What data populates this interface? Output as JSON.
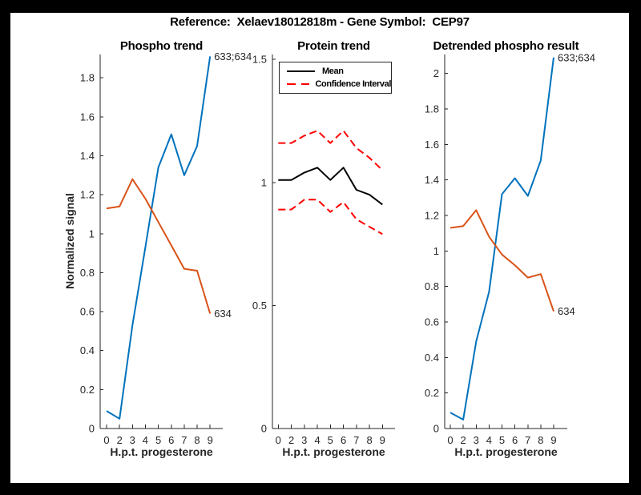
{
  "figure_title": "Reference:  Xelaev18012818m - Gene Symbol:  CEP97",
  "chart_data": [
    {
      "type": "line",
      "title": "Phospho trend",
      "xlabel": "H.p.t. progesterone",
      "ylabel": "Normalized signal",
      "categories": [
        "0",
        "2",
        "3",
        "4",
        "5",
        "6",
        "7",
        "8",
        "9"
      ],
      "ylim": [
        0,
        1.92
      ],
      "yticks": [
        0,
        0.2,
        0.4,
        0.6,
        0.8,
        1,
        1.2,
        1.4,
        1.6,
        1.8
      ],
      "grid": false,
      "series": [
        {
          "name": "633;634",
          "color": "#0072BD",
          "dash": "solid",
          "end_label": "633;634",
          "values": [
            0.09,
            0.05,
            0.53,
            0.93,
            1.34,
            1.51,
            1.3,
            1.45,
            1.91
          ]
        },
        {
          "name": "634",
          "color": "#D95319",
          "dash": "solid",
          "end_label": "634",
          "values": [
            1.13,
            1.14,
            1.28,
            1.18,
            1.06,
            0.94,
            0.82,
            0.81,
            0.59
          ]
        }
      ]
    },
    {
      "type": "line",
      "title": "Protein trend",
      "xlabel": "H.p.t. progesterone",
      "ylabel": "",
      "categories": [
        "0",
        "2",
        "3",
        "4",
        "5",
        "6",
        "7",
        "8",
        "9"
      ],
      "ylim": [
        0,
        1.52
      ],
      "yticks": [
        0,
        0.5,
        1,
        1.5
      ],
      "grid": false,
      "legend": {
        "position": "top-left",
        "items": [
          {
            "label": "Mean",
            "color": "#000000",
            "dash": "solid"
          },
          {
            "label": "Confidence Interval",
            "color": "#FF0000",
            "dash": "dashed"
          }
        ]
      },
      "series": [
        {
          "name": "Mean",
          "color": "#000000",
          "dash": "solid",
          "values": [
            1.01,
            1.01,
            1.04,
            1.06,
            1.01,
            1.06,
            0.97,
            0.95,
            0.91
          ]
        },
        {
          "name": "Confidence Interval upper",
          "color": "#FF0000",
          "dash": "dashed",
          "values": [
            1.16,
            1.16,
            1.19,
            1.21,
            1.16,
            1.21,
            1.14,
            1.1,
            1.05
          ]
        },
        {
          "name": "Confidence Interval lower",
          "color": "#FF0000",
          "dash": "dashed",
          "values": [
            0.89,
            0.89,
            0.93,
            0.93,
            0.88,
            0.92,
            0.85,
            0.82,
            0.79
          ]
        }
      ]
    },
    {
      "type": "line",
      "title": "Detrended phospho result",
      "xlabel": "H.p.t. progesterone",
      "ylabel": "",
      "categories": [
        "0",
        "2",
        "3",
        "4",
        "5",
        "6",
        "7",
        "8",
        "9"
      ],
      "ylim": [
        0,
        2.107
      ],
      "yticks": [
        0,
        0.2,
        0.4,
        0.6,
        0.8,
        1,
        1.2,
        1.4,
        1.6,
        1.8,
        2
      ],
      "grid": false,
      "series": [
        {
          "name": "633;634",
          "color": "#0072BD",
          "dash": "solid",
          "end_label": "633;634",
          "values": [
            0.09,
            0.05,
            0.49,
            0.77,
            1.32,
            1.41,
            1.31,
            1.51,
            2.09
          ]
        },
        {
          "name": "634",
          "color": "#D95319",
          "dash": "solid",
          "end_label": "634",
          "values": [
            1.13,
            1.14,
            1.23,
            1.08,
            0.98,
            0.92,
            0.85,
            0.87,
            0.66
          ]
        }
      ]
    }
  ]
}
